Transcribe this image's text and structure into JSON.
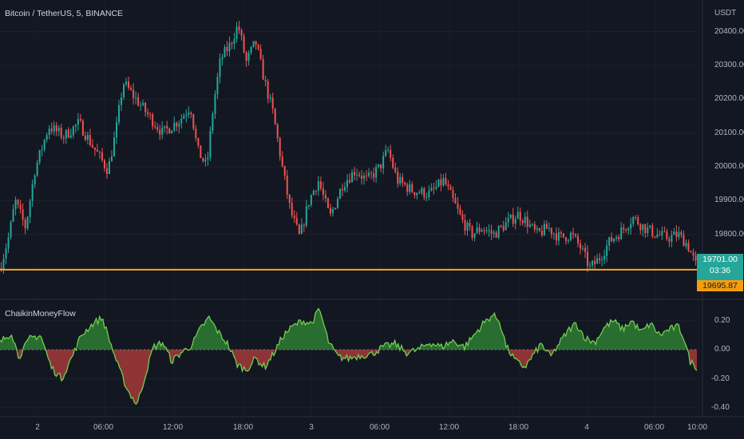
{
  "header": {
    "title": "Bitcoin / TetherUS, 5, BINANCE",
    "currency": "USDT"
  },
  "indicator": {
    "name": "ChaikinMoneyFlow"
  },
  "price_labels": {
    "last_price": "19701.00",
    "countdown": "03:36",
    "line_price": "19695.87"
  },
  "colors": {
    "background": "#131722",
    "up_candle": "#26a69a",
    "down_candle": "#ef5350",
    "hline": "#f5a623",
    "cmf_line": "#6fcf4f",
    "cmf_pos_fill": "#2e7d32",
    "cmf_neg_fill": "#a63a3a"
  },
  "chart_data": [
    {
      "type": "candlestick",
      "title": "Bitcoin / TetherUS, 5, BINANCE",
      "y_axis_label": "USDT",
      "y_ticks": [
        19800,
        19900,
        20000,
        20100,
        20200,
        20300,
        20400
      ],
      "y_tick_labels": [
        "19800.00",
        "19900.00",
        "20000.00",
        "20100.00",
        "20200.00",
        "20300.00",
        "20400.00"
      ],
      "ylim": [
        19620,
        20470
      ],
      "x_ticks": [
        "2",
        "06:00",
        "12:00",
        "18:00",
        "3",
        "06:00",
        "12:00",
        "18:00",
        "4",
        "06:00",
        "10:00"
      ],
      "horizontal_line": 19695.87,
      "last_price": 19701.0,
      "close_path": [
        {
          "t": 0,
          "p": 19700
        },
        {
          "t": 0.8,
          "p": 19800
        },
        {
          "t": 1.3,
          "p": 19900
        },
        {
          "t": 2.2,
          "p": 19820
        },
        {
          "t": 3.0,
          "p": 19990
        },
        {
          "t": 4.2,
          "p": 20120
        },
        {
          "t": 5.5,
          "p": 20090
        },
        {
          "t": 6.8,
          "p": 20130
        },
        {
          "t": 8.0,
          "p": 20060
        },
        {
          "t": 9.3,
          "p": 19990
        },
        {
          "t": 10.0,
          "p": 20110
        },
        {
          "t": 10.6,
          "p": 20250
        },
        {
          "t": 11.5,
          "p": 20210
        },
        {
          "t": 12.6,
          "p": 20160
        },
        {
          "t": 14.0,
          "p": 20100
        },
        {
          "t": 15.5,
          "p": 20140
        },
        {
          "t": 16.4,
          "p": 20180
        },
        {
          "t": 17.0,
          "p": 20050
        },
        {
          "t": 17.8,
          "p": 20000
        },
        {
          "t": 18.4,
          "p": 20190
        },
        {
          "t": 19.0,
          "p": 20320
        },
        {
          "t": 19.8,
          "p": 20360
        },
        {
          "t": 20.5,
          "p": 20420
        },
        {
          "t": 21.2,
          "p": 20310
        },
        {
          "t": 22.0,
          "p": 20370
        },
        {
          "t": 22.8,
          "p": 20250
        },
        {
          "t": 23.5,
          "p": 20160
        },
        {
          "t": 24.3,
          "p": 20000
        },
        {
          "t": 25.0,
          "p": 19870
        },
        {
          "t": 25.8,
          "p": 19790
        },
        {
          "t": 26.6,
          "p": 19900
        },
        {
          "t": 27.4,
          "p": 19960
        },
        {
          "t": 28.4,
          "p": 19850
        },
        {
          "t": 29.5,
          "p": 19950
        },
        {
          "t": 30.6,
          "p": 19990
        },
        {
          "t": 31.6,
          "p": 19960
        },
        {
          "t": 32.7,
          "p": 20000
        },
        {
          "t": 33.4,
          "p": 20050
        },
        {
          "t": 34.2,
          "p": 19960
        },
        {
          "t": 35.5,
          "p": 19930
        },
        {
          "t": 37.0,
          "p": 19920
        },
        {
          "t": 38.2,
          "p": 19960
        },
        {
          "t": 39.0,
          "p": 19900
        },
        {
          "t": 39.8,
          "p": 19840
        },
        {
          "t": 40.6,
          "p": 19800
        },
        {
          "t": 41.5,
          "p": 19820
        },
        {
          "t": 42.5,
          "p": 19800
        },
        {
          "t": 43.5,
          "p": 19830
        },
        {
          "t": 44.6,
          "p": 19860
        },
        {
          "t": 45.3,
          "p": 19840
        },
        {
          "t": 46.2,
          "p": 19800
        },
        {
          "t": 47.2,
          "p": 19820
        },
        {
          "t": 48.2,
          "p": 19790
        },
        {
          "t": 49.2,
          "p": 19800
        },
        {
          "t": 50.0,
          "p": 19760
        },
        {
          "t": 50.8,
          "p": 19700
        },
        {
          "t": 51.6,
          "p": 19730
        },
        {
          "t": 52.5,
          "p": 19780
        },
        {
          "t": 53.5,
          "p": 19810
        },
        {
          "t": 54.5,
          "p": 19850
        },
        {
          "t": 55.5,
          "p": 19820
        },
        {
          "t": 56.5,
          "p": 19800
        },
        {
          "t": 57.5,
          "p": 19790
        },
        {
          "t": 58.4,
          "p": 19800
        },
        {
          "t": 59.2,
          "p": 19770
        },
        {
          "t": 60.0,
          "p": 19701
        }
      ]
    },
    {
      "type": "area",
      "title": "ChaikinMoneyFlow",
      "y_ticks": [
        0.2,
        0.0,
        -0.2,
        -0.4
      ],
      "y_tick_labels": [
        "0.20",
        "0.00",
        "-0.20",
        "-0.40"
      ],
      "ylim": [
        -0.45,
        0.32
      ],
      "x_ticks": [
        "2",
        "06:00",
        "12:00",
        "18:00",
        "3",
        "06:00",
        "12:00",
        "18:00",
        "4",
        "06:00",
        "10:00"
      ],
      "values_path": [
        {
          "t": 0,
          "v": 0.05
        },
        {
          "t": 1.0,
          "v": 0.12
        },
        {
          "t": 1.6,
          "v": -0.05
        },
        {
          "t": 2.6,
          "v": 0.08
        },
        {
          "t": 3.5,
          "v": 0.1
        },
        {
          "t": 4.4,
          "v": -0.12
        },
        {
          "t": 5.3,
          "v": -0.2
        },
        {
          "t": 6.2,
          "v": -0.05
        },
        {
          "t": 7.0,
          "v": 0.1
        },
        {
          "t": 8.0,
          "v": 0.18
        },
        {
          "t": 8.8,
          "v": 0.22
        },
        {
          "t": 9.5,
          "v": 0.05
        },
        {
          "t": 10.2,
          "v": -0.12
        },
        {
          "t": 11.0,
          "v": -0.28
        },
        {
          "t": 11.8,
          "v": -0.38
        },
        {
          "t": 12.5,
          "v": -0.18
        },
        {
          "t": 13.2,
          "v": 0.02
        },
        {
          "t": 14.0,
          "v": 0.05
        },
        {
          "t": 14.8,
          "v": -0.08
        },
        {
          "t": 15.6,
          "v": -0.02
        },
        {
          "t": 16.5,
          "v": 0.03
        },
        {
          "t": 17.3,
          "v": 0.15
        },
        {
          "t": 18.0,
          "v": 0.22
        },
        {
          "t": 18.8,
          "v": 0.12
        },
        {
          "t": 19.6,
          "v": 0.04
        },
        {
          "t": 20.4,
          "v": -0.1
        },
        {
          "t": 21.2,
          "v": -0.14
        },
        {
          "t": 22.0,
          "v": -0.06
        },
        {
          "t": 22.8,
          "v": -0.12
        },
        {
          "t": 23.6,
          "v": -0.02
        },
        {
          "t": 24.4,
          "v": 0.1
        },
        {
          "t": 25.2,
          "v": 0.16
        },
        {
          "t": 26.0,
          "v": 0.2
        },
        {
          "t": 26.8,
          "v": 0.18
        },
        {
          "t": 27.5,
          "v": 0.28
        },
        {
          "t": 28.3,
          "v": 0.05
        },
        {
          "t": 29.1,
          "v": -0.05
        },
        {
          "t": 30.0,
          "v": -0.06
        },
        {
          "t": 31.0,
          "v": -0.04
        },
        {
          "t": 32.0,
          "v": -0.03
        },
        {
          "t": 33.0,
          "v": 0.02
        },
        {
          "t": 34.0,
          "v": 0.04
        },
        {
          "t": 35.0,
          "v": -0.02
        },
        {
          "t": 36.0,
          "v": 0.0
        },
        {
          "t": 37.0,
          "v": 0.05
        },
        {
          "t": 38.0,
          "v": 0.02
        },
        {
          "t": 39.0,
          "v": 0.06
        },
        {
          "t": 40.0,
          "v": 0.02
        },
        {
          "t": 40.8,
          "v": 0.1
        },
        {
          "t": 41.6,
          "v": 0.18
        },
        {
          "t": 42.4,
          "v": 0.24
        },
        {
          "t": 43.0,
          "v": 0.2
        },
        {
          "t": 43.6,
          "v": 0.02
        },
        {
          "t": 44.4,
          "v": -0.08
        },
        {
          "t": 45.2,
          "v": -0.12
        },
        {
          "t": 45.8,
          "v": -0.05
        },
        {
          "t": 46.6,
          "v": 0.04
        },
        {
          "t": 47.4,
          "v": -0.05
        },
        {
          "t": 48.2,
          "v": 0.05
        },
        {
          "t": 49.0,
          "v": 0.14
        },
        {
          "t": 49.6,
          "v": 0.18
        },
        {
          "t": 50.4,
          "v": 0.08
        },
        {
          "t": 51.2,
          "v": 0.05
        },
        {
          "t": 52.0,
          "v": 0.15
        },
        {
          "t": 52.8,
          "v": 0.2
        },
        {
          "t": 53.6,
          "v": 0.14
        },
        {
          "t": 54.4,
          "v": 0.2
        },
        {
          "t": 55.2,
          "v": 0.12
        },
        {
          "t": 56.0,
          "v": 0.18
        },
        {
          "t": 56.8,
          "v": 0.1
        },
        {
          "t": 57.6,
          "v": 0.14
        },
        {
          "t": 58.4,
          "v": 0.16
        },
        {
          "t": 58.9,
          "v": 0.08
        },
        {
          "t": 59.4,
          "v": -0.08
        },
        {
          "t": 60.0,
          "v": -0.12
        }
      ]
    }
  ]
}
